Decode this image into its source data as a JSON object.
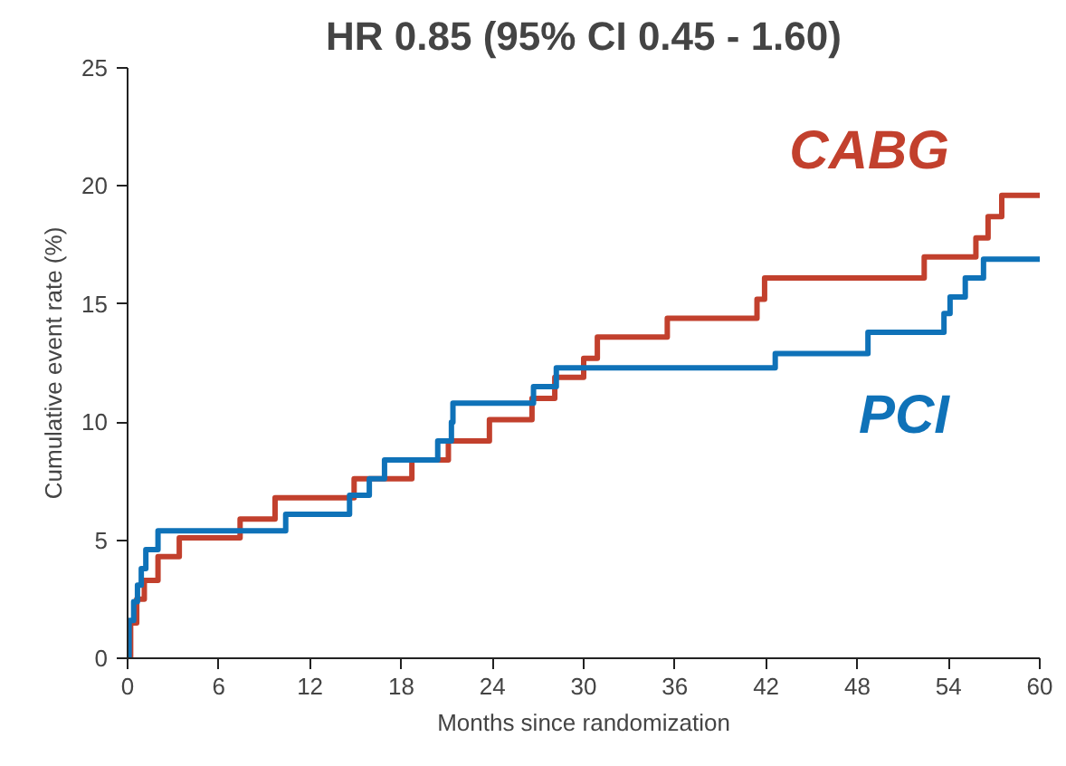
{
  "chart_data": {
    "type": "step",
    "title": "HR 0.85 (95% CI 0.45 - 1.60)",
    "xlabel": "Months since randomization",
    "ylabel": "Cumulative event rate (%)",
    "xlim": [
      0,
      60
    ],
    "ylim": [
      0,
      25
    ],
    "xticks": [
      0,
      6,
      12,
      18,
      24,
      30,
      36,
      42,
      48,
      54,
      60
    ],
    "yticks": [
      0,
      5,
      10,
      15,
      20,
      25
    ],
    "grid": false,
    "series": [
      {
        "name": "CABG",
        "color": "#c2402d",
        "x": [
          0,
          0.2,
          0.6,
          1.1,
          2.0,
          3.4,
          7.4,
          9.7,
          14.9,
          18.7,
          21.1,
          23.8,
          26.6,
          28.1,
          30.0,
          30.9,
          35.5,
          41.4,
          41.9,
          52.4,
          55.8,
          56.6,
          57.5,
          60
        ],
        "values": [
          0,
          1.5,
          2.5,
          3.3,
          4.3,
          5.1,
          5.9,
          6.8,
          7.6,
          8.4,
          9.2,
          10.1,
          11.0,
          11.9,
          12.7,
          13.6,
          14.4,
          15.2,
          16.1,
          17.0,
          17.8,
          18.7,
          19.6,
          19.6
        ]
      },
      {
        "name": "PCI",
        "color": "#0f72b8",
        "x": [
          0,
          0.1,
          0.4,
          0.65,
          0.9,
          1.2,
          2.0,
          10.4,
          14.6,
          15.9,
          16.9,
          20.4,
          21.3,
          21.4,
          26.7,
          28.2,
          42.6,
          48.7,
          53.7,
          54.1,
          55.1,
          56.3,
          60
        ],
        "values": [
          0,
          1.6,
          2.4,
          3.1,
          3.8,
          4.6,
          5.4,
          6.1,
          6.9,
          7.6,
          8.4,
          9.2,
          10.0,
          10.8,
          11.5,
          12.3,
          12.9,
          13.8,
          14.6,
          15.3,
          16.1,
          16.9,
          16.9
        ]
      }
    ]
  }
}
